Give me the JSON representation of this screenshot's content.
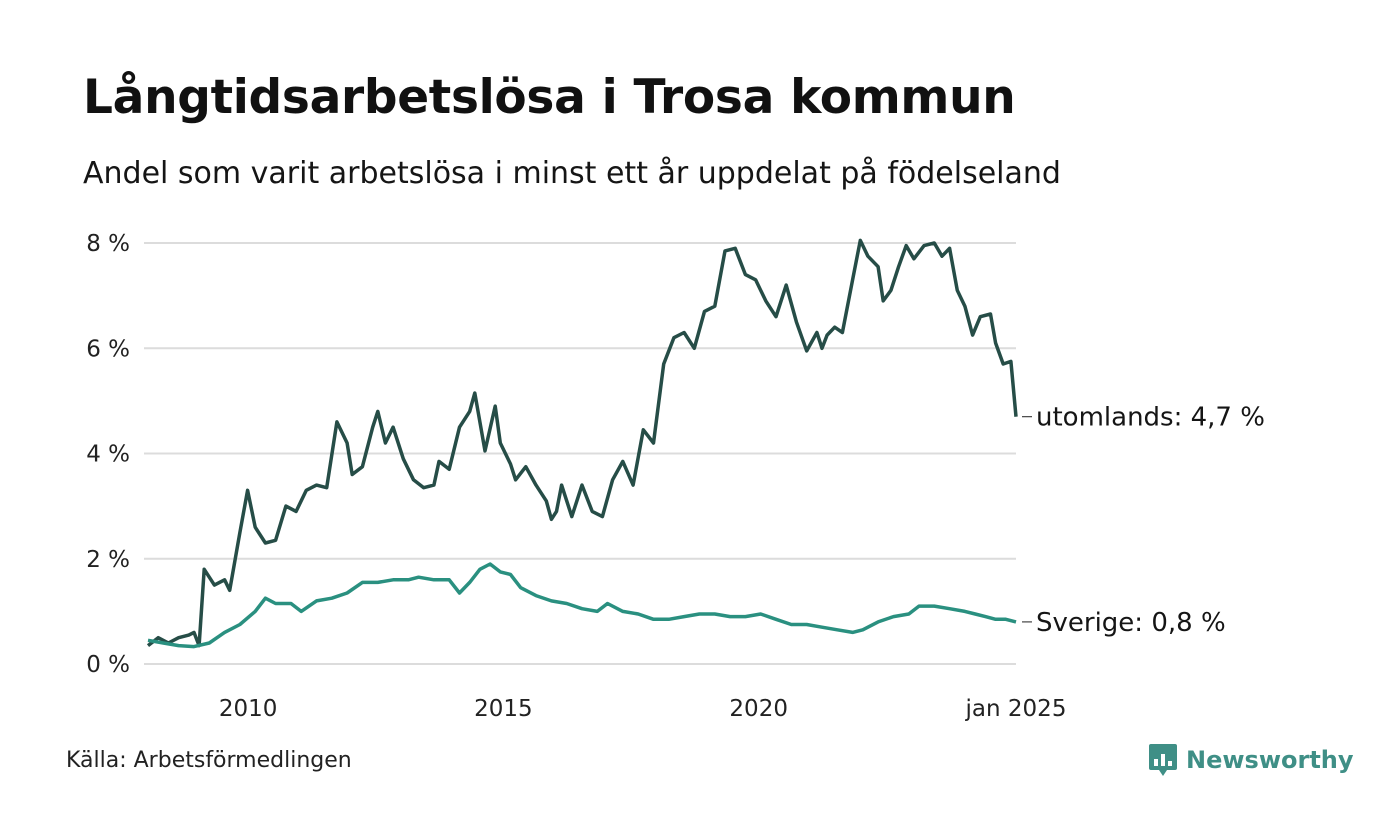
{
  "header": {
    "title": "Långtidsarbetslösa i Trosa kommun",
    "subtitle": "Andel som varit arbetslösa i minst ett år uppdelat på födelseland"
  },
  "footer": {
    "source": "Källa: Arbetsförmedlingen",
    "brand": "Newsworthy",
    "brand_icon": "bar-chart-speech-bubble-icon"
  },
  "colors": {
    "utomlands": "#264d47",
    "sverige": "#2a9080",
    "grid": "#dcdcdc",
    "brand": "#3f8f86"
  },
  "chart_data": {
    "type": "line",
    "x_unit": "year",
    "xlim": [
      2008.0,
      2025.0
    ],
    "ylim": [
      0,
      8
    ],
    "y_ticks": [
      0,
      2,
      4,
      6,
      8
    ],
    "y_tick_labels": [
      "0 %",
      "2 %",
      "4 %",
      "6 %",
      "8 %"
    ],
    "x_ticks": [
      2010,
      2015,
      2020,
      2025
    ],
    "x_tick_labels": [
      "2010",
      "2015",
      "2020",
      "jan 2025"
    ],
    "grid": "horizontal",
    "series": [
      {
        "key": "utomlands",
        "end_label": "utomlands: 4,7 %",
        "points": [
          [
            2008.0,
            0.35
          ],
          [
            2008.2,
            0.5
          ],
          [
            2008.4,
            0.4
          ],
          [
            2008.6,
            0.5
          ],
          [
            2008.8,
            0.55
          ],
          [
            2008.9,
            0.6
          ],
          [
            2009.0,
            0.35
          ],
          [
            2009.1,
            1.8
          ],
          [
            2009.3,
            1.5
          ],
          [
            2009.5,
            1.6
          ],
          [
            2009.6,
            1.4
          ],
          [
            2009.8,
            2.5
          ],
          [
            2009.95,
            3.3
          ],
          [
            2010.1,
            2.6
          ],
          [
            2010.3,
            2.3
          ],
          [
            2010.5,
            2.35
          ],
          [
            2010.7,
            3.0
          ],
          [
            2010.9,
            2.9
          ],
          [
            2011.1,
            3.3
          ],
          [
            2011.3,
            3.4
          ],
          [
            2011.5,
            3.35
          ],
          [
            2011.7,
            4.6
          ],
          [
            2011.9,
            4.2
          ],
          [
            2012.0,
            3.6
          ],
          [
            2012.2,
            3.75
          ],
          [
            2012.4,
            4.5
          ],
          [
            2012.5,
            4.8
          ],
          [
            2012.65,
            4.2
          ],
          [
            2012.8,
            4.5
          ],
          [
            2013.0,
            3.9
          ],
          [
            2013.2,
            3.5
          ],
          [
            2013.4,
            3.35
          ],
          [
            2013.6,
            3.4
          ],
          [
            2013.7,
            3.85
          ],
          [
            2013.9,
            3.7
          ],
          [
            2014.1,
            4.5
          ],
          [
            2014.3,
            4.8
          ],
          [
            2014.4,
            5.15
          ],
          [
            2014.6,
            4.05
          ],
          [
            2014.8,
            4.9
          ],
          [
            2014.9,
            4.2
          ],
          [
            2015.1,
            3.8
          ],
          [
            2015.2,
            3.5
          ],
          [
            2015.4,
            3.75
          ],
          [
            2015.6,
            3.4
          ],
          [
            2015.8,
            3.1
          ],
          [
            2015.9,
            2.75
          ],
          [
            2016.0,
            2.9
          ],
          [
            2016.1,
            3.4
          ],
          [
            2016.3,
            2.8
          ],
          [
            2016.5,
            3.4
          ],
          [
            2016.7,
            2.9
          ],
          [
            2016.9,
            2.8
          ],
          [
            2017.1,
            3.5
          ],
          [
            2017.3,
            3.85
          ],
          [
            2017.5,
            3.4
          ],
          [
            2017.7,
            4.45
          ],
          [
            2017.9,
            4.2
          ],
          [
            2018.1,
            5.7
          ],
          [
            2018.3,
            6.2
          ],
          [
            2018.5,
            6.3
          ],
          [
            2018.7,
            6.0
          ],
          [
            2018.9,
            6.7
          ],
          [
            2019.1,
            6.8
          ],
          [
            2019.3,
            7.85
          ],
          [
            2019.5,
            7.9
          ],
          [
            2019.7,
            7.4
          ],
          [
            2019.9,
            7.3
          ],
          [
            2020.1,
            6.9
          ],
          [
            2020.3,
            6.6
          ],
          [
            2020.5,
            7.2
          ],
          [
            2020.7,
            6.5
          ],
          [
            2020.9,
            5.95
          ],
          [
            2021.1,
            6.3
          ],
          [
            2021.2,
            6.0
          ],
          [
            2021.3,
            6.25
          ],
          [
            2021.45,
            6.4
          ],
          [
            2021.6,
            6.3
          ],
          [
            2021.8,
            7.3
          ],
          [
            2021.95,
            8.05
          ],
          [
            2022.1,
            7.75
          ],
          [
            2022.3,
            7.55
          ],
          [
            2022.4,
            6.9
          ],
          [
            2022.55,
            7.1
          ],
          [
            2022.7,
            7.55
          ],
          [
            2022.85,
            7.95
          ],
          [
            2023.0,
            7.7
          ],
          [
            2023.2,
            7.95
          ],
          [
            2023.4,
            8.0
          ],
          [
            2023.55,
            7.75
          ],
          [
            2023.7,
            7.9
          ],
          [
            2023.85,
            7.1
          ],
          [
            2024.0,
            6.8
          ],
          [
            2024.15,
            6.25
          ],
          [
            2024.3,
            6.6
          ],
          [
            2024.5,
            6.65
          ],
          [
            2024.6,
            6.1
          ],
          [
            2024.75,
            5.7
          ],
          [
            2024.9,
            5.75
          ],
          [
            2025.0,
            4.7
          ]
        ]
      },
      {
        "key": "sverige",
        "end_label": "Sverige: 0,8 %",
        "points": [
          [
            2008.0,
            0.45
          ],
          [
            2008.3,
            0.4
          ],
          [
            2008.6,
            0.35
          ],
          [
            2008.9,
            0.33
          ],
          [
            2009.2,
            0.4
          ],
          [
            2009.5,
            0.6
          ],
          [
            2009.8,
            0.75
          ],
          [
            2010.1,
            1.0
          ],
          [
            2010.3,
            1.25
          ],
          [
            2010.5,
            1.15
          ],
          [
            2010.8,
            1.15
          ],
          [
            2011.0,
            1.0
          ],
          [
            2011.3,
            1.2
          ],
          [
            2011.6,
            1.25
          ],
          [
            2011.9,
            1.35
          ],
          [
            2012.2,
            1.55
          ],
          [
            2012.5,
            1.55
          ],
          [
            2012.8,
            1.6
          ],
          [
            2013.1,
            1.6
          ],
          [
            2013.3,
            1.65
          ],
          [
            2013.6,
            1.6
          ],
          [
            2013.9,
            1.6
          ],
          [
            2014.1,
            1.35
          ],
          [
            2014.3,
            1.55
          ],
          [
            2014.5,
            1.8
          ],
          [
            2014.7,
            1.9
          ],
          [
            2014.9,
            1.75
          ],
          [
            2015.1,
            1.7
          ],
          [
            2015.3,
            1.45
          ],
          [
            2015.6,
            1.3
          ],
          [
            2015.9,
            1.2
          ],
          [
            2016.2,
            1.15
          ],
          [
            2016.5,
            1.05
          ],
          [
            2016.8,
            1.0
          ],
          [
            2017.0,
            1.15
          ],
          [
            2017.3,
            1.0
          ],
          [
            2017.6,
            0.95
          ],
          [
            2017.9,
            0.85
          ],
          [
            2018.2,
            0.85
          ],
          [
            2018.5,
            0.9
          ],
          [
            2018.8,
            0.95
          ],
          [
            2019.1,
            0.95
          ],
          [
            2019.4,
            0.9
          ],
          [
            2019.7,
            0.9
          ],
          [
            2020.0,
            0.95
          ],
          [
            2020.3,
            0.85
          ],
          [
            2020.6,
            0.75
          ],
          [
            2020.9,
            0.75
          ],
          [
            2021.2,
            0.7
          ],
          [
            2021.5,
            0.65
          ],
          [
            2021.8,
            0.6
          ],
          [
            2022.0,
            0.65
          ],
          [
            2022.3,
            0.8
          ],
          [
            2022.6,
            0.9
          ],
          [
            2022.9,
            0.95
          ],
          [
            2023.1,
            1.1
          ],
          [
            2023.4,
            1.1
          ],
          [
            2023.7,
            1.05
          ],
          [
            2024.0,
            1.0
          ],
          [
            2024.2,
            0.95
          ],
          [
            2024.4,
            0.9
          ],
          [
            2024.6,
            0.85
          ],
          [
            2024.8,
            0.85
          ],
          [
            2025.0,
            0.8
          ]
        ]
      }
    ]
  }
}
